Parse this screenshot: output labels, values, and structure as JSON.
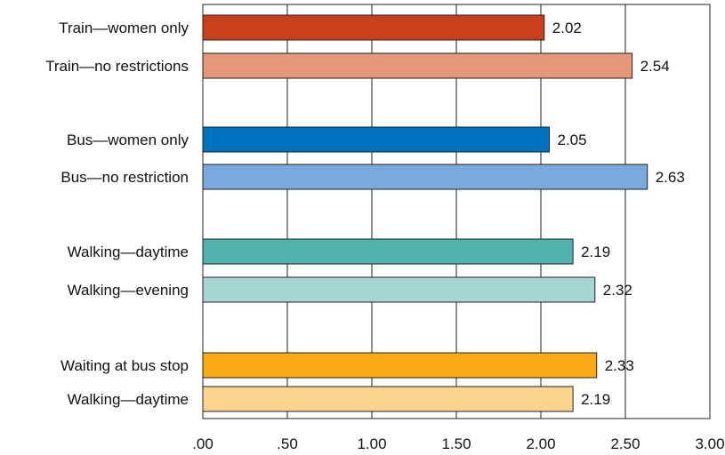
{
  "chart_data": {
    "type": "bar",
    "orientation": "horizontal",
    "title": "",
    "xlabel": "",
    "ylabel": "",
    "xlim": [
      0,
      3
    ],
    "x_ticks": [
      0,
      0.5,
      1,
      1.5,
      2,
      2.5,
      3
    ],
    "x_tick_labels": [
      ".00",
      ".50",
      "1.00",
      "1.50",
      "2.00",
      "2.50",
      "3.00"
    ],
    "grid": "vertical",
    "legend": "none",
    "categories": [
      "Train—women only",
      "Train—no restrictions",
      "Bus—women only",
      "Bus—no restriction",
      "Walking—daytime",
      "Walking—evening",
      "Waiting at bus stop",
      "Walking—daytime"
    ],
    "values": [
      2.02,
      2.54,
      2.05,
      2.63,
      2.19,
      2.32,
      2.33,
      2.19
    ],
    "value_labels": [
      "2.02",
      "2.54",
      "2.05",
      "2.63",
      "2.19",
      "2.32",
      "2.33",
      "2.19"
    ],
    "colors": [
      "#c9401c",
      "#e4977a",
      "#0072c0",
      "#7ba8dd",
      "#52b3ad",
      "#a7d6d2",
      "#f9ab16",
      "#fdd48e"
    ]
  }
}
